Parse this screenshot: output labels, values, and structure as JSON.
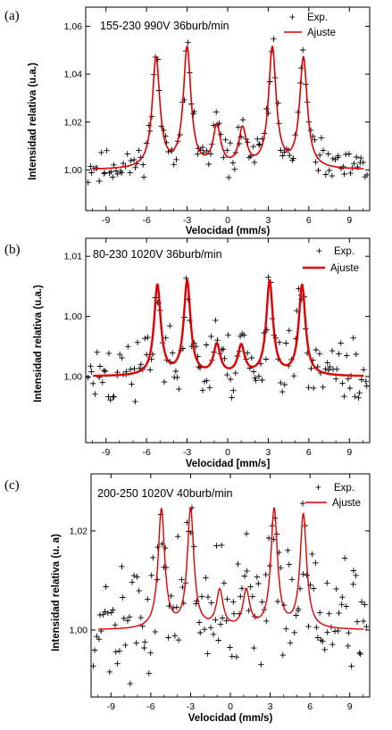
{
  "chart_data": [
    {
      "type": "scatter",
      "panel_label": "(a)",
      "annotation": "155-230 990V 36burb/min",
      "xlabel": "Velocidad (mm/s)",
      "ylabel": "Intensidad relativa (u.a.)",
      "xlim": [
        -10.5,
        10.5
      ],
      "ylim": [
        0.983,
        1.068
      ],
      "xticks": [
        -9,
        -6,
        -3,
        0,
        3,
        6,
        9
      ],
      "xtick_labels": [
        "-9",
        "-6",
        "-3",
        "0",
        "3",
        "6",
        "9"
      ],
      "yticks": [
        1.0,
        1.02,
        1.04,
        1.06
      ],
      "ytick_labels": [
        "1,00",
        "1,02",
        "1,04",
        "1,06"
      ],
      "legend": {
        "position": "top-right",
        "entries": [
          "Exp.",
          "Ajuste"
        ]
      },
      "fit": {
        "name": "Ajuste",
        "baseline": 1.0,
        "peaks_x": [
          -5.3,
          -3.0,
          -0.8,
          1.1,
          3.3,
          5.6
        ],
        "peaks_amp": [
          0.046,
          0.05,
          0.017,
          0.016,
          0.05,
          0.046
        ],
        "width": 0.34,
        "stroke_width": 1.6
      },
      "exp": {
        "name": "Exp.",
        "noise": 0.0035,
        "n": 150,
        "seed": 11
      }
    },
    {
      "type": "scatter",
      "panel_label": "(b)",
      "annotation": "80-230 1020V 36burb/min",
      "xlabel": "Velocidad [mm/s]",
      "ylabel": "Intensidad relativa (u.a.)",
      "xlim": [
        -10.5,
        10.5
      ],
      "ylim": [
        0.9945,
        1.0115
      ],
      "xticks": [
        -9,
        -6,
        -3,
        0,
        3,
        6,
        9
      ],
      "xtick_labels": [
        "-9",
        "-6",
        "-3",
        "0",
        "3",
        "6",
        "9"
      ],
      "yticks": [
        1.0,
        1.005,
        1.01
      ],
      "ytick_labels": [
        "1,00",
        "1,00",
        "1,01"
      ],
      "legend": {
        "position": "top-right",
        "entries": [
          "Exp.",
          "Ajuste"
        ]
      },
      "fit": {
        "name": "Ajuste",
        "baseline": 1.0,
        "peaks_x": [
          -5.2,
          -3.0,
          -0.8,
          1.0,
          3.1,
          5.5
        ],
        "peaks_amp": [
          0.0075,
          0.0078,
          0.0025,
          0.0024,
          0.0078,
          0.0075
        ],
        "width": 0.3,
        "stroke_width": 2.4
      },
      "exp": {
        "name": "Exp.",
        "noise": 0.0014,
        "n": 160,
        "seed": 23
      }
    },
    {
      "type": "scatter",
      "panel_label": "(c)",
      "annotation": "200-250 1020V 40burb/min",
      "xlabel": "Velocidad (mm/s)",
      "ylabel": "Intensidad relativa (u. a)",
      "xlim": [
        -10.5,
        10.5
      ],
      "ylim": [
        0.9865,
        1.0315
      ],
      "xticks": [
        -9,
        -6,
        -3,
        0,
        3,
        6,
        9
      ],
      "xtick_labels": [
        "-9",
        "-6",
        "-3",
        "0",
        "3",
        "6",
        "9"
      ],
      "yticks": [
        1.0,
        1.02
      ],
      "ytick_labels": [
        "1,00",
        "1,02"
      ],
      "legend": {
        "position": "top-right",
        "entries": [
          "Exp.",
          "Ajuste"
        ]
      },
      "fit": {
        "name": "Ajuste",
        "baseline": 1.0,
        "peaks_x": [
          -5.2,
          -3.0,
          -0.8,
          1.2,
          3.3,
          5.5
        ],
        "peaks_amp": [
          0.024,
          0.024,
          0.0075,
          0.0075,
          0.024,
          0.023
        ],
        "width": 0.3,
        "stroke_width": 1.4
      },
      "exp": {
        "name": "Exp.",
        "noise": 0.0055,
        "n": 170,
        "seed": 37
      }
    }
  ]
}
